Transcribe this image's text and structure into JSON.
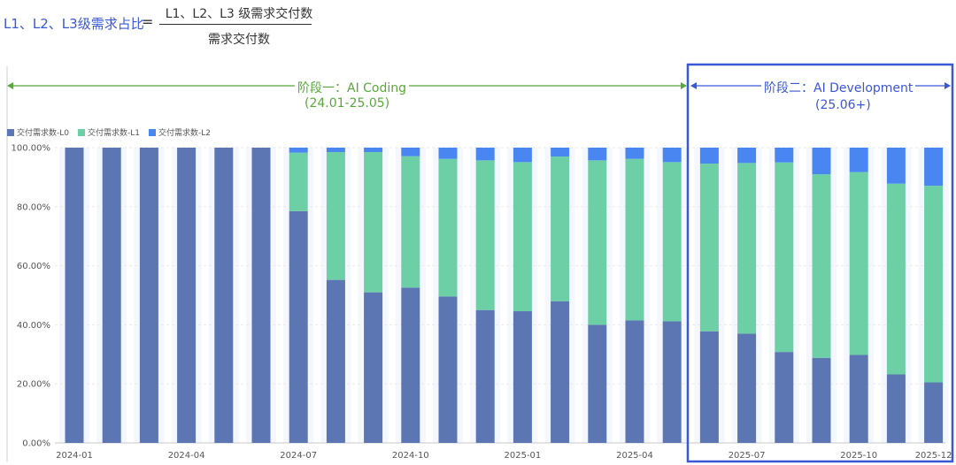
{
  "formula": {
    "lhs": "L1、L2、L3级需求占比",
    "equals": "=",
    "numerator": "L1、L2、L3 级需求交付数",
    "denominator": "需求交付数"
  },
  "phases": [
    {
      "label": "阶段一：AI Coding",
      "range": "(24.01-25.05)",
      "color": "#5aa83c"
    },
    {
      "label": "阶段二：AI Development",
      "range": "(25.06+)",
      "color": "#3a57d6"
    }
  ],
  "chart_data": {
    "type": "bar",
    "stacked": true,
    "categories": [
      "2024-01",
      "2024-02",
      "2024-03",
      "2024-04",
      "2024-05",
      "2024-06",
      "2024-07",
      "2024-08",
      "2024-09",
      "2024-10",
      "2024-11",
      "2024-12",
      "2025-01",
      "2025-02",
      "2025-03",
      "2025-04",
      "2025-05",
      "2025-06",
      "2025-07",
      "2025-08",
      "2025-09",
      "2025-10",
      "2025-11",
      "2025-12"
    ],
    "tick_labels": [
      "2024-01",
      "2024-04",
      "2024-07",
      "2024-10",
      "2025-01",
      "2025-04",
      "2025-07",
      "2025-10",
      "2025-12"
    ],
    "tick_indices": [
      0,
      3,
      6,
      9,
      12,
      15,
      18,
      21,
      23
    ],
    "yticks": [
      "0.00%",
      "20.00%",
      "40.00%",
      "60.00%",
      "80.00%",
      "100.00%"
    ],
    "ylim": [
      0,
      100
    ],
    "legend_position": "top-left",
    "series": [
      {
        "name": "交付需求数-L0",
        "color": "#5b76b3",
        "values": [
          100,
          100,
          100,
          100,
          100,
          100,
          78.5,
          55.2,
          51,
          52.6,
          49.6,
          45,
          44.6,
          48,
          40,
          41.5,
          41.2,
          37.8,
          37,
          30.8,
          28.8,
          29.8,
          23.2,
          20.5
        ]
      },
      {
        "name": "交付需求数-L1",
        "color": "#6dcfa6",
        "values": [
          0,
          0,
          0,
          0,
          0,
          0,
          19.8,
          43.3,
          47.5,
          44.5,
          46.6,
          50.7,
          50.5,
          49,
          55.7,
          54.7,
          53.9,
          56.8,
          57.8,
          64.2,
          62.2,
          61.9,
          64.6,
          66.6
        ]
      },
      {
        "name": "交付需求数-L2",
        "color": "#4a86f2",
        "values": [
          0,
          0,
          0,
          0,
          0,
          0,
          1.7,
          1.5,
          1.5,
          2.9,
          3.8,
          4.3,
          4.9,
          3,
          4.3,
          3.8,
          4.9,
          5.4,
          5.2,
          5,
          9,
          8.3,
          12.2,
          12.9
        ]
      }
    ]
  }
}
